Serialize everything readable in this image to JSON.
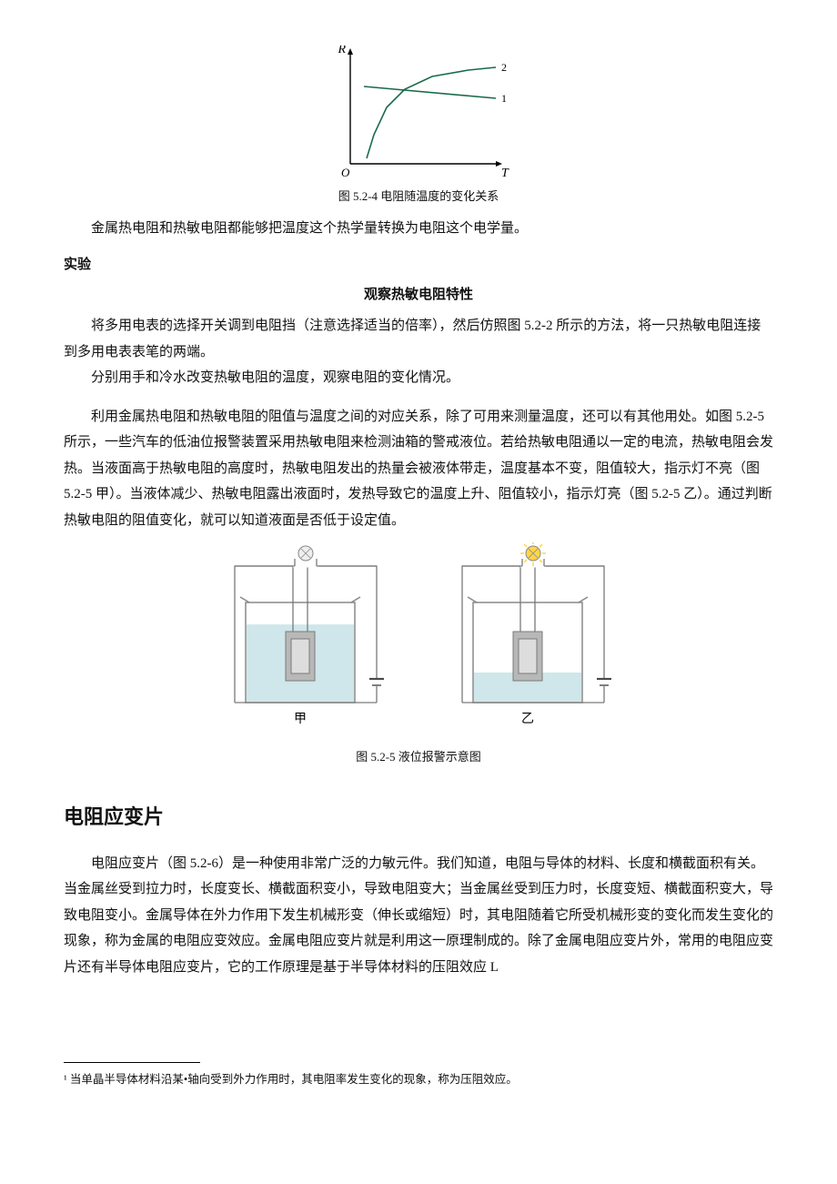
{
  "figure1": {
    "type": "line",
    "axis_y_label": "R",
    "axis_x_label": "T",
    "origin_label": "O",
    "series": [
      {
        "name": "curve-1",
        "label": "1",
        "stroke": "#1a6b4a",
        "stroke_width": 1.6,
        "points": [
          [
            15,
            85
          ],
          [
            160,
            72
          ]
        ]
      },
      {
        "name": "curve-2",
        "label": "2",
        "stroke": "#1a6b4a",
        "stroke_width": 1.6,
        "points": [
          [
            18,
            6
          ],
          [
            26,
            32
          ],
          [
            40,
            62
          ],
          [
            60,
            82
          ],
          [
            90,
            96
          ],
          [
            130,
            103
          ],
          [
            160,
            106
          ]
        ]
      }
    ],
    "axis_color": "#000000",
    "background": "#ffffff",
    "caption": "图 5.2-4 电阻随温度的变化关系"
  },
  "para1": "金属热电阻和热敏电阻都能够把温度这个热学量转换为电阻这个电学量。",
  "experiment": {
    "label": "实验",
    "title": "观察热敏电阻特性",
    "p1": "将多用电表的选择开关调到电阻挡（注意选择适当的倍率），然后仿照图 5.2-2 所示的方法，将一只热敏电阻连接到多用电表表笔的两端。",
    "p2": "分别用手和冷水改变热敏电阻的温度，观察电阻的变化情况。"
  },
  "para2": "利用金属热电阻和热敏电阻的阻值与温度之间的对应关系，除了可用来测量温度，还可以有其他用处。如图 5.2-5 所示，一些汽车的低油位报警装置采用热敏电阻来检测油箱的警戒液位。若给热敏电阻通以一定的电流，热敏电阻会发热。当液面高于热敏电阻的高度时，热敏电阻发出的热量会被液体带走，温度基本不变，阻值较大，指示灯不亮（图 5.2-5 甲）。当液体减少、热敏电阻露出液面时，发热导致它的温度上升、阻值较小，指示灯亮（图 5.2-5 乙）。通过判断热敏电阻的阻值变化，就可以知道液面是否低于设定值。",
  "figure2": {
    "type": "infographic",
    "background": "#ffffff",
    "beaker_stroke": "#888888",
    "beaker_fill": "#d8dee2",
    "liquid_fill": "#cfe6ea",
    "resistor_fill": "#b8b8b8",
    "resistor_inner": "#dddddd",
    "wire_color": "#7a7a7a",
    "bulb_off_fill": "#eeeeee",
    "bulb_on_fill": "#ffd54a",
    "battery_color": "#4a4a4a",
    "panels": [
      {
        "name": "甲",
        "label": "甲",
        "bulb_on": false,
        "liquid_level": 0.78
      },
      {
        "name": "乙",
        "label": "乙",
        "bulb_on": true,
        "liquid_level": 0.3
      }
    ],
    "caption": "图 5.2-5 液位报警示意图"
  },
  "subhead": "电阻应变片",
  "para3": "电阻应变片（图 5.2-6）是一种使用非常广泛的力敏元件。我们知道，电阻与导体的材料、长度和横截面积有关。当金属丝受到拉力时，长度变长、横截面积变小，导致电阻变大；当金属丝受到压力时，长度变短、横截面积变大，导致电阻变小。金属导体在外力作用下发生机械形变（伸长或缩短）时，其电阻随着它所受机械形变的变化而发生变化的现象，称为金属的电阻应变效应。金属电阻应变片就是利用这一原理制成的。除了金属电阻应变片外，常用的电阻应变片还有半导体电阻应变片，它的工作原理是基于半导体材料的压阻效应 L",
  "footnote": "¹ 当单晶半导体材料沿某•轴向受到外力作用时，其电阻率发生变化的现象，称为压阻效应。"
}
